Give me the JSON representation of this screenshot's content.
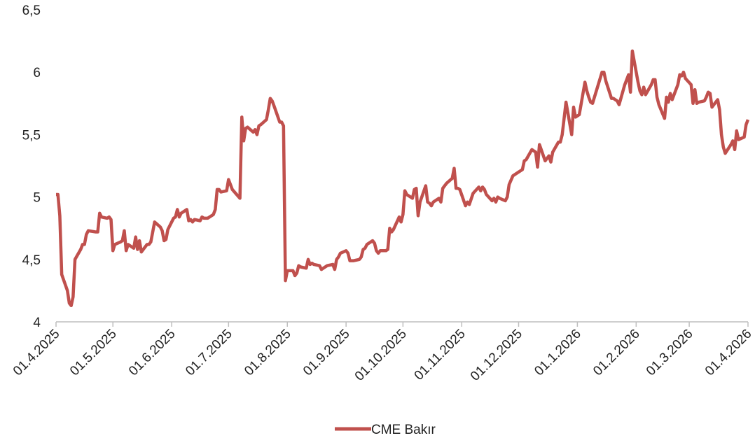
{
  "chart_data": {
    "type": "line",
    "series": [
      {
        "name": "CME Bakır",
        "color": "#c0504d",
        "x": [
          "01.4.2025",
          "02.4.2025",
          "03.4.2025",
          "04.4.2025",
          "07.4.2025",
          "08.4.2025",
          "09.4.2025",
          "10.4.2025",
          "11.4.2025",
          "14.4.2025",
          "15.4.2025",
          "16.4.2025",
          "17.4.2025",
          "18.4.2025",
          "22.4.2025",
          "23.4.2025",
          "24.4.2025",
          "25.4.2025",
          "28.4.2025",
          "29.4.2025",
          "30.4.2025",
          "01.5.2025",
          "02.5.2025",
          "05.5.2025",
          "06.5.2025",
          "07.5.2025",
          "08.5.2025",
          "09.5.2025",
          "12.5.2025",
          "13.5.2025",
          "14.5.2025",
          "15.5.2025",
          "16.5.2025",
          "19.5.2025",
          "20.5.2025",
          "21.5.2025",
          "23.5.2025",
          "26.5.2025",
          "27.5.2025",
          "28.5.2025",
          "29.5.2025",
          "30.5.2025",
          "02.6.2025",
          "03.6.2025",
          "04.6.2025",
          "05.6.2025",
          "06.6.2025",
          "09.6.2025",
          "10.6.2025",
          "11.6.2025",
          "12.6.2025",
          "13.6.2025",
          "16.6.2025",
          "17.6.2025",
          "18.6.2025",
          "20.6.2025",
          "23.6.2025",
          "24.6.2025",
          "25.6.2025",
          "26.6.2025",
          "27.6.2025",
          "30.6.2025",
          "01.7.2025",
          "02.7.2025",
          "03.7.2025",
          "07.7.2025",
          "08.7.2025",
          "09.7.2025",
          "10.7.2025",
          "11.7.2025",
          "14.7.2025",
          "15.7.2025",
          "16.7.2025",
          "17.7.2025",
          "18.7.2025",
          "21.7.2025",
          "22.7.2025",
          "23.7.2025",
          "24.7.2025",
          "25.7.2025",
          "28.7.2025",
          "29.7.2025",
          "30.7.2025",
          "31.7.2025",
          "01.8.2025",
          "04.8.2025",
          "05.8.2025",
          "06.8.2025",
          "07.8.2025",
          "08.8.2025",
          "11.8.2025",
          "12.8.2025",
          "13.8.2025",
          "14.8.2025",
          "15.8.2025",
          "18.8.2025",
          "19.8.2025",
          "20.8.2025",
          "22.8.2025",
          "25.8.2025",
          "26.8.2025",
          "27.8.2025",
          "28.8.2025",
          "29.8.2025",
          "01.9.2025",
          "02.9.2025",
          "03.9.2025",
          "05.9.2025",
          "08.9.2025",
          "09.9.2025",
          "10.9.2025",
          "11.9.2025",
          "12.9.2025",
          "15.9.2025",
          "16.9.2025",
          "17.9.2025",
          "18.9.2025",
          "19.9.2025",
          "22.9.2025",
          "23.9.2025",
          "24.9.2025",
          "25.9.2025",
          "26.9.2025",
          "29.9.2025",
          "30.9.2025",
          "01.10.2025",
          "02.10.2025",
          "03.10.2025",
          "06.10.2025",
          "07.10.2025",
          "08.10.2025",
          "09.10.2025",
          "10.10.2025",
          "13.10.2025",
          "14.10.2025",
          "15.10.2025",
          "16.10.2025",
          "17.10.2025",
          "20.10.2025",
          "21.10.2025",
          "22.10.2025",
          "23.10.2025",
          "24.10.2025",
          "27.10.2025",
          "28.10.2025",
          "29.10.2025",
          "30.10.2025",
          "31.10.2025",
          "03.11.2025",
          "04.11.2025",
          "05.11.2025",
          "07.11.2025",
          "10.11.2025",
          "11.11.2025",
          "12.11.2025",
          "13.11.2025",
          "14.11.2025",
          "17.11.2025",
          "18.11.2025",
          "19.11.2025",
          "20.11.2025",
          "21.11.2025",
          "24.11.2025",
          "25.11.2025",
          "26.11.2025",
          "28.11.2025",
          "01.12.2025",
          "02.12.2025",
          "03.12.2025",
          "04.12.2025",
          "05.12.2025",
          "08.12.2025",
          "09.12.2025",
          "10.12.2025",
          "11.12.2025",
          "12.12.2025",
          "15.12.2025",
          "16.12.2025",
          "17.12.2025",
          "18.12.2025",
          "19.12.2025",
          "22.12.2025",
          "23.12.2025",
          "24.12.2025",
          "26.12.2025",
          "29.12.2025",
          "30.12.2025",
          "31.12.2025",
          "02.1.2026",
          "05.1.2026",
          "06.1.2026",
          "07.1.2026",
          "08.1.2026",
          "09.1.2026",
          "12.1.2026",
          "13.1.2026",
          "14.1.2026",
          "15.1.2026",
          "16.1.2026",
          "19.1.2026",
          "20.1.2026",
          "21.1.2026",
          "22.1.2026",
          "23.1.2026",
          "26.1.2026",
          "27.1.2026",
          "28.1.2026",
          "29.1.2026",
          "30.1.2026",
          "02.2.2026",
          "03.2.2026",
          "04.2.2026",
          "05.2.2026",
          "06.2.2026",
          "09.2.2026",
          "10.2.2026",
          "11.2.2026",
          "12.2.2026",
          "13.2.2026",
          "16.2.2026",
          "17.2.2026",
          "18.2.2026",
          "19.2.2026",
          "20.2.2026",
          "23.2.2026",
          "24.2.2026",
          "25.2.2026",
          "26.2.2026",
          "27.2.2026",
          "02.3.2026",
          "03.3.2026",
          "04.3.2026",
          "05.3.2026",
          "06.3.2026",
          "09.3.2026",
          "10.3.2026",
          "11.3.2026",
          "12.3.2026",
          "13.3.2026",
          "16.3.2026",
          "17.3.2026",
          "18.3.2026",
          "19.3.2026",
          "20.3.2026",
          "23.3.2026",
          "24.3.2026",
          "25.3.2026",
          "26.3.2026",
          "27.3.2026",
          "30.3.2026",
          "31.3.2026",
          "01.4.2026"
        ],
        "values": [
          5.02,
          5.02,
          4.85,
          4.38,
          4.25,
          4.15,
          4.13,
          4.2,
          4.5,
          4.58,
          4.62,
          4.62,
          4.7,
          4.73,
          4.72,
          4.72,
          4.87,
          4.84,
          4.83,
          4.84,
          4.82,
          4.57,
          4.62,
          4.64,
          4.65,
          4.73,
          4.57,
          4.62,
          4.59,
          4.68,
          4.58,
          4.65,
          4.56,
          4.62,
          4.62,
          4.64,
          4.8,
          4.76,
          4.73,
          4.65,
          4.66,
          4.74,
          4.83,
          4.84,
          4.9,
          4.84,
          4.87,
          4.9,
          4.81,
          4.82,
          4.8,
          4.82,
          4.81,
          4.84,
          4.83,
          4.83,
          4.86,
          4.9,
          5.06,
          5.06,
          5.04,
          5.05,
          5.14,
          5.1,
          5.06,
          4.99,
          5.64,
          5.45,
          5.55,
          5.56,
          5.52,
          5.54,
          5.5,
          5.57,
          5.58,
          5.62,
          5.7,
          5.79,
          5.77,
          5.73,
          5.6,
          5.6,
          5.57,
          4.33,
          4.41,
          4.41,
          4.37,
          4.39,
          4.45,
          4.44,
          4.43,
          4.5,
          4.46,
          4.47,
          4.46,
          4.45,
          4.42,
          4.43,
          4.45,
          4.46,
          4.42,
          4.5,
          4.52,
          4.55,
          4.57,
          4.55,
          4.49,
          4.49,
          4.5,
          4.52,
          4.58,
          4.59,
          4.62,
          4.65,
          4.63,
          4.57,
          4.55,
          4.57,
          4.57,
          4.58,
          4.75,
          4.72,
          4.74,
          4.84,
          4.8,
          4.86,
          5.05,
          5.02,
          4.99,
          5.06,
          5.07,
          4.85,
          4.96,
          5.09,
          4.96,
          4.95,
          4.93,
          4.96,
          4.99,
          4.96,
          5.07,
          5.09,
          5.11,
          5.15,
          5.23,
          5.07,
          5.07,
          5.06,
          4.93,
          4.96,
          4.94,
          5.03,
          5.08,
          5.05,
          5.08,
          5.06,
          5.02,
          4.97,
          4.99,
          4.96,
          5.0,
          4.99,
          4.97,
          5.0,
          5.1,
          5.17,
          5.2,
          5.21,
          5.22,
          5.29,
          5.3,
          5.38,
          5.37,
          5.36,
          5.24,
          5.42,
          5.29,
          5.31,
          5.33,
          5.28,
          5.36,
          5.44,
          5.44,
          5.5,
          5.76,
          5.5,
          5.72,
          5.64,
          5.66,
          5.92,
          5.85,
          5.8,
          5.76,
          5.75,
          5.9,
          5.95,
          6.0,
          6.0,
          5.93,
          5.79,
          5.79,
          5.78,
          5.77,
          5.74,
          5.9,
          5.94,
          5.98,
          5.84,
          6.17,
          5.92,
          5.85,
          5.82,
          5.88,
          5.82,
          5.9,
          5.94,
          5.94,
          5.8,
          5.74,
          5.63,
          5.8,
          5.76,
          5.83,
          5.78,
          5.9,
          5.98,
          5.97,
          6.0,
          5.95,
          5.9,
          5.75,
          5.86,
          5.75,
          5.76,
          5.77,
          5.8,
          5.84,
          5.83,
          5.72,
          5.78,
          5.7,
          5.5,
          5.4,
          5.35,
          5.42,
          5.45,
          5.38,
          5.53,
          5.46,
          5.48,
          5.58,
          5.62
        ]
      }
    ],
    "xlim": [
      "01.4.2025",
      "01.4.2026"
    ],
    "xticks": [
      "01.4.2025",
      "01.5.2025",
      "01.6.2025",
      "01.7.2025",
      "01.8.2025",
      "01.9.2025",
      "01.10.2025",
      "01.11.2025",
      "01.12.2025",
      "01.1.2026",
      "01.2.2026",
      "01.3.2026",
      "01.4.2026"
    ],
    "ylim": [
      4,
      6.5
    ],
    "yticks": [
      4,
      {
        "value": 4.5,
        "label": "4,5"
      },
      5,
      {
        "value": 5.5,
        "label": "5,5"
      },
      6,
      {
        "value": 6.5,
        "label": "6,5"
      }
    ],
    "grid": false,
    "legend": "bottom"
  }
}
